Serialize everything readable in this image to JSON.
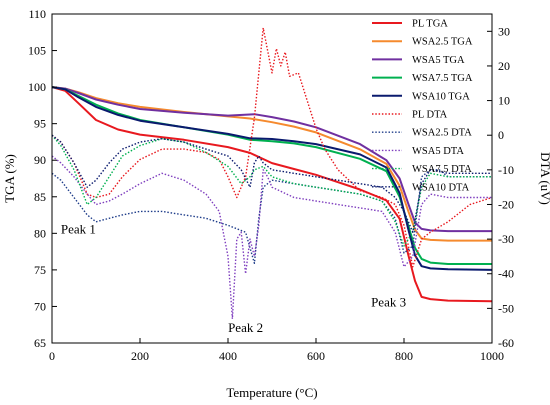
{
  "chart_data": {
    "type": "line",
    "xlabel": "Temperature (°C)",
    "ylabel_left": "TGA (%)",
    "ylabel_right": "DTA (uV)",
    "xlim": [
      0,
      1000
    ],
    "ylim_left": [
      65,
      110
    ],
    "ylim_right": [
      -60,
      35
    ],
    "x_ticks": [
      "0",
      "200",
      "400",
      "600",
      "800",
      "1000"
    ],
    "y_left_ticks": [
      "65",
      "70",
      "75",
      "80",
      "85",
      "90",
      "95",
      "100",
      "105",
      "110"
    ],
    "y_right_ticks": [
      "-60",
      "-50",
      "-40",
      "-30",
      "-20",
      "-10",
      "0",
      "10",
      "20",
      "30"
    ],
    "grid": false,
    "legend_position": "top-right",
    "annotations": [
      {
        "text": "Peak 1",
        "x": 60,
        "y_left": 80
      },
      {
        "text": "Peak 2",
        "x": 440,
        "y_left": 66.5
      },
      {
        "text": "Peak 3",
        "x": 765,
        "y_left": 70
      }
    ],
    "series": [
      {
        "name": "PL TGA",
        "axis": "left",
        "color": "#e8191f",
        "style": "solid",
        "x": [
          0,
          30,
          60,
          100,
          150,
          200,
          300,
          400,
          450,
          500,
          550,
          600,
          700,
          760,
          790,
          810,
          825,
          840,
          860,
          900,
          1000
        ],
        "y": [
          100,
          99.5,
          97.8,
          95.5,
          94.2,
          93.5,
          92.8,
          91.8,
          91.0,
          89.6,
          88.8,
          88.0,
          86.0,
          84.5,
          82.0,
          77.0,
          73.5,
          71.3,
          71.0,
          70.8,
          70.7
        ]
      },
      {
        "name": "WSA2.5 TGA",
        "axis": "left",
        "color": "#f58a2e",
        "style": "solid",
        "x": [
          0,
          30,
          60,
          100,
          150,
          200,
          300,
          400,
          450,
          500,
          550,
          600,
          700,
          760,
          790,
          810,
          825,
          840,
          860,
          900,
          1000
        ],
        "y": [
          100,
          99.8,
          99.3,
          98.5,
          97.8,
          97.3,
          96.6,
          96.0,
          95.7,
          95.2,
          94.6,
          93.8,
          91.5,
          89.5,
          86.5,
          83.0,
          80.5,
          79.3,
          79.1,
          79.0,
          79.0
        ]
      },
      {
        "name": "WSA5 TGA",
        "axis": "left",
        "color": "#7030a0",
        "style": "solid",
        "x": [
          0,
          30,
          60,
          100,
          150,
          200,
          300,
          400,
          460,
          500,
          550,
          600,
          700,
          760,
          790,
          810,
          825,
          840,
          860,
          900,
          1000
        ],
        "y": [
          100,
          99.8,
          99.2,
          98.3,
          97.6,
          97.0,
          96.5,
          96.1,
          96.3,
          95.9,
          95.3,
          94.5,
          92.2,
          90.0,
          87.5,
          84.0,
          81.5,
          80.6,
          80.4,
          80.3,
          80.3
        ]
      },
      {
        "name": "WSA7.5 TGA",
        "axis": "left",
        "color": "#00b050",
        "style": "solid",
        "x": [
          0,
          30,
          60,
          100,
          150,
          200,
          300,
          400,
          450,
          500,
          550,
          600,
          700,
          760,
          790,
          810,
          825,
          840,
          860,
          900,
          1000
        ],
        "y": [
          100,
          99.7,
          98.8,
          97.6,
          96.4,
          95.5,
          94.5,
          93.5,
          92.8,
          92.6,
          92.3,
          91.8,
          90.2,
          88.5,
          85.0,
          81.0,
          78.0,
          76.5,
          76.0,
          75.8,
          75.8
        ]
      },
      {
        "name": "WSA10 TGA",
        "axis": "left",
        "color": "#0a1a6e",
        "style": "solid",
        "x": [
          0,
          30,
          60,
          100,
          150,
          200,
          300,
          400,
          450,
          500,
          550,
          600,
          700,
          760,
          790,
          810,
          825,
          840,
          860,
          900,
          1000
        ],
        "y": [
          100,
          99.7,
          98.6,
          97.3,
          96.2,
          95.4,
          94.5,
          93.6,
          93.0,
          92.9,
          92.6,
          92.2,
          90.8,
          89.0,
          85.5,
          80.5,
          77.0,
          75.5,
          75.2,
          75.1,
          75.0
        ]
      },
      {
        "name": "PL DTA",
        "axis": "right",
        "color": "#e8191f",
        "style": "dotted",
        "x": [
          0,
          20,
          50,
          80,
          100,
          130,
          160,
          200,
          250,
          300,
          350,
          380,
          400,
          420,
          440,
          460,
          480,
          500,
          510,
          520,
          530,
          540,
          560,
          580,
          600,
          620,
          650,
          700,
          750,
          780,
          800,
          820,
          840,
          860,
          900,
          950,
          1000
        ],
        "y": [
          0,
          -2,
          -8,
          -17,
          -18,
          -17,
          -12,
          -7,
          -4,
          -4,
          -5,
          -7,
          -12,
          -18,
          -12,
          5,
          31,
          18,
          25,
          20,
          24,
          17,
          18,
          10,
          2,
          -4,
          -10,
          -16,
          -18,
          -20,
          -26,
          -38,
          -30,
          -28,
          -25,
          -20,
          -18
        ]
      },
      {
        "name": "WSA2.5 DTA",
        "axis": "right",
        "color": "#1f3d8a",
        "style": "dotted",
        "x": [
          0,
          20,
          50,
          80,
          100,
          130,
          160,
          200,
          250,
          300,
          350,
          400,
          440,
          460,
          470,
          480,
          500,
          550,
          600,
          650,
          700,
          750,
          780,
          800,
          820,
          840,
          860,
          880,
          900,
          950,
          1000
        ],
        "y": [
          -11,
          -13,
          -18,
          -23,
          -25,
          -24,
          -23,
          -22,
          -22,
          -23,
          -24,
          -26,
          -28,
          -37,
          -24,
          -15,
          -13,
          -14,
          -15,
          -16,
          -17,
          -19,
          -24,
          -34,
          -32,
          -12,
          -10,
          -10,
          -12,
          -12,
          -12
        ]
      },
      {
        "name": "WSA5 DTA",
        "axis": "right",
        "color": "#7f3fbf",
        "style": "dotted",
        "x": [
          0,
          20,
          50,
          80,
          100,
          130,
          160,
          200,
          250,
          300,
          350,
          380,
          400,
          410,
          420,
          430,
          440,
          450,
          460,
          470,
          480,
          490,
          500,
          550,
          600,
          650,
          700,
          750,
          780,
          800,
          820,
          840,
          860,
          900,
          950,
          1000
        ],
        "y": [
          -6,
          -8,
          -12,
          -17,
          -20,
          -19,
          -17,
          -14,
          -11,
          -13,
          -17,
          -22,
          -35,
          -53,
          -30,
          -28,
          -40,
          -30,
          -35,
          -26,
          -10,
          -12,
          -15,
          -18,
          -19,
          -20,
          -21,
          -22,
          -28,
          -38,
          -35,
          -20,
          -17,
          -18,
          -18,
          -18
        ]
      },
      {
        "name": "WSA7.5 DTA",
        "axis": "right",
        "color": "#00b050",
        "style": "dotted",
        "x": [
          0,
          20,
          50,
          80,
          100,
          130,
          160,
          200,
          250,
          300,
          350,
          400,
          430,
          450,
          460,
          480,
          500,
          550,
          600,
          650,
          700,
          750,
          780,
          800,
          820,
          840,
          860,
          900,
          950,
          1000
        ],
        "y": [
          0,
          -3,
          -10,
          -20,
          -18,
          -12,
          -6,
          -3,
          -1,
          -2,
          -5,
          -9,
          -14,
          -12,
          -10,
          -9,
          -12,
          -14,
          -15,
          -16,
          -17,
          -19,
          -25,
          -32,
          -28,
          -15,
          -11,
          -12,
          -12,
          -12
        ]
      },
      {
        "name": "WSA10 DTA",
        "axis": "right",
        "color": "#0a1a6e",
        "style": "dotted",
        "x": [
          0,
          20,
          50,
          80,
          100,
          130,
          160,
          200,
          250,
          300,
          350,
          400,
          430,
          450,
          460,
          470,
          480,
          500,
          550,
          600,
          650,
          700,
          750,
          780,
          800,
          820,
          840,
          860,
          900,
          950,
          1000
        ],
        "y": [
          0,
          -2,
          -8,
          -15,
          -13,
          -8,
          -4,
          -2,
          -1,
          -2,
          -4,
          -6,
          -10,
          -15,
          -8,
          -6,
          -8,
          -10,
          -11,
          -12,
          -13,
          -14,
          -15,
          -18,
          -22,
          -28,
          -14,
          -10,
          -11,
          -11,
          -11
        ]
      }
    ]
  }
}
